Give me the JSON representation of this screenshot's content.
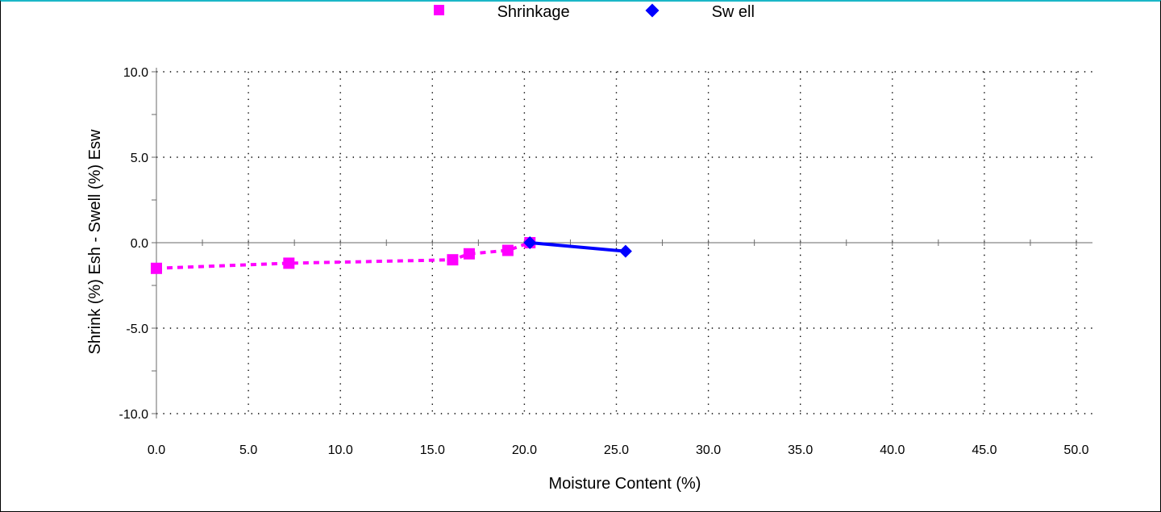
{
  "chart_data": {
    "type": "line",
    "xlabel": "Moisture Content (%)",
    "ylabel": "Shrink (%) Esh - Swell (%) Esw",
    "xlim": [
      0,
      50
    ],
    "ylim": [
      -10,
      10
    ],
    "x_ticks": [
      "0.0",
      "5.0",
      "10.0",
      "15.0",
      "20.0",
      "25.0",
      "30.0",
      "35.0",
      "40.0",
      "45.0",
      "50.0"
    ],
    "y_ticks": [
      "10.0",
      "5.0",
      "0.0",
      "-5.0",
      "-10.0"
    ],
    "grid": true,
    "legend_position": "top-center",
    "series": [
      {
        "name": "Shrinkage",
        "marker": "square",
        "line_style": "dashed",
        "color": "#ff00ff",
        "points": [
          [
            0.0,
            -1.5
          ],
          [
            7.2,
            -1.2
          ],
          [
            16.1,
            -1.0
          ],
          [
            17.0,
            -0.65
          ],
          [
            19.1,
            -0.45
          ],
          [
            20.3,
            0.0
          ]
        ]
      },
      {
        "name": "Sw ell",
        "marker": "diamond",
        "line_style": "solid",
        "color": "#0000ff",
        "points": [
          [
            20.3,
            0.0
          ],
          [
            25.5,
            -0.5
          ]
        ]
      }
    ]
  }
}
